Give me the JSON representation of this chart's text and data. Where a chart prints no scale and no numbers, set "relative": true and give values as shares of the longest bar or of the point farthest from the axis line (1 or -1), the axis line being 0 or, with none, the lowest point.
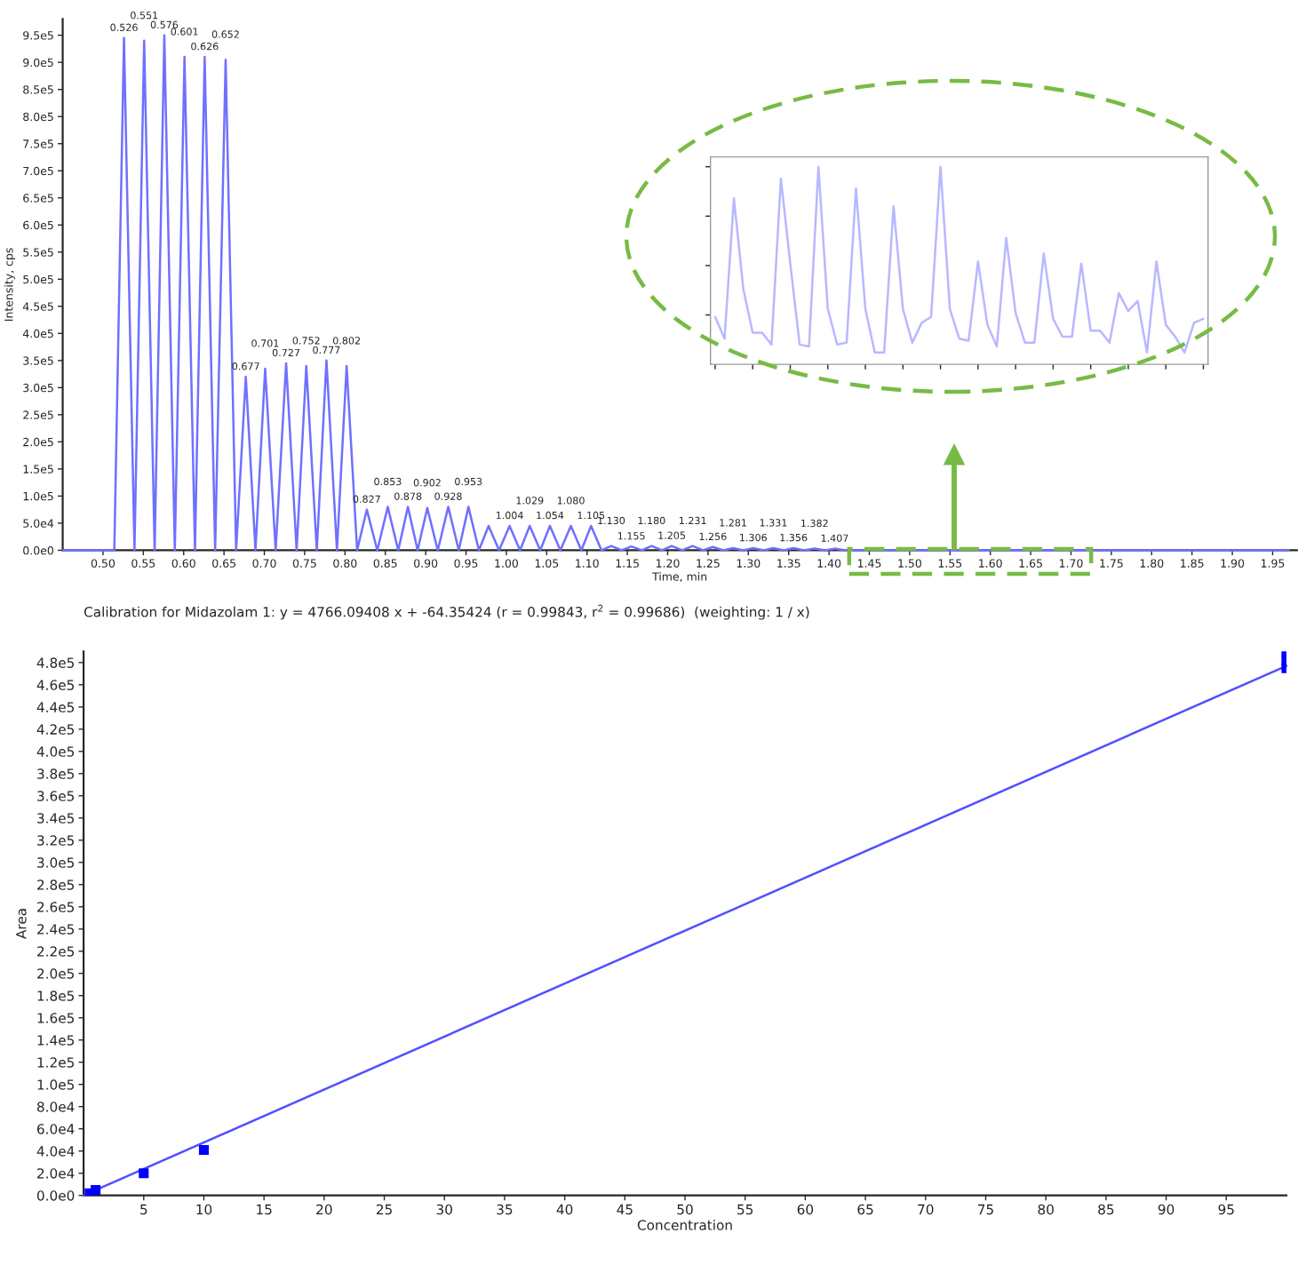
{
  "chart_data": [
    {
      "type": "line",
      "xlabel": "Time, min",
      "ylabel": "Intensity, cps",
      "color": "#7070ff",
      "x": [
        0.45,
        0.514,
        0.526,
        0.539,
        0.551,
        0.564,
        0.576,
        0.589,
        0.601,
        0.614,
        0.626,
        0.639,
        0.652,
        0.665,
        0.677,
        0.689,
        0.701,
        0.714,
        0.727,
        0.74,
        0.752,
        0.765,
        0.777,
        0.79,
        0.802,
        0.815,
        0.827,
        0.84,
        0.853,
        0.866,
        0.878,
        0.89,
        0.902,
        0.915,
        0.928,
        0.941,
        0.953,
        0.966,
        0.978,
        0.991,
        1.004,
        1.017,
        1.029,
        1.042,
        1.054,
        1.067,
        1.08,
        1.093,
        1.105,
        1.118,
        1.13,
        1.143,
        1.155,
        1.168,
        1.18,
        1.193,
        1.205,
        1.218,
        1.231,
        1.244,
        1.256,
        1.269,
        1.281,
        1.294,
        1.306,
        1.319,
        1.331,
        1.344,
        1.356,
        1.369,
        1.382,
        1.395,
        1.407,
        1.42,
        1.97
      ],
      "values": [
        0,
        0,
        945000,
        0,
        940000,
        0,
        950000,
        0,
        910000,
        0,
        910000,
        0,
        905000,
        0,
        320000,
        0,
        335000,
        0,
        345000,
        0,
        340000,
        0,
        350000,
        0,
        340000,
        0,
        75000,
        0,
        80000,
        0,
        80000,
        0,
        78000,
        0,
        80000,
        0,
        80000,
        0,
        45000,
        0,
        45000,
        0,
        45000,
        0,
        45000,
        0,
        45000,
        0,
        45000,
        0,
        8000,
        0,
        7000,
        0,
        8000,
        0,
        8000,
        0,
        8000,
        0,
        6000,
        0,
        4000,
        0,
        4000,
        0,
        4000,
        0,
        4000,
        0,
        3000,
        0,
        3000,
        0,
        0
      ],
      "xlim": [
        0.45,
        1.98
      ],
      "ylim": [
        0,
        980000
      ],
      "xticks": [
        {
          "value": 0.5,
          "label": "0.50"
        },
        {
          "value": 0.55,
          "label": "0.55"
        },
        {
          "value": 0.6,
          "label": "0.60"
        },
        {
          "value": 0.65,
          "label": "0.65"
        },
        {
          "value": 0.7,
          "label": "0.70"
        },
        {
          "value": 0.75,
          "label": "0.75"
        },
        {
          "value": 0.8,
          "label": "0.80"
        },
        {
          "value": 0.85,
          "label": "0.85"
        },
        {
          "value": 0.9,
          "label": "0.90"
        },
        {
          "value": 0.95,
          "label": "0.95"
        },
        {
          "value": 1.0,
          "label": "1.00"
        },
        {
          "value": 1.05,
          "label": "1.05"
        },
        {
          "value": 1.1,
          "label": "1.10"
        },
        {
          "value": 1.15,
          "label": "1.15"
        },
        {
          "value": 1.2,
          "label": "1.20"
        },
        {
          "value": 1.25,
          "label": "1.25"
        },
        {
          "value": 1.3,
          "label": "1.30"
        },
        {
          "value": 1.35,
          "label": "1.35"
        },
        {
          "value": 1.4,
          "label": "1.40"
        },
        {
          "value": 1.45,
          "label": "1.45"
        },
        {
          "value": 1.5,
          "label": "1.50"
        },
        {
          "value": 1.55,
          "label": "1.55"
        },
        {
          "value": 1.6,
          "label": "1.60"
        },
        {
          "value": 1.65,
          "label": "1.65"
        },
        {
          "value": 1.7,
          "label": "1.70"
        },
        {
          "value": 1.75,
          "label": "1.75"
        },
        {
          "value": 1.8,
          "label": "1.80"
        },
        {
          "value": 1.85,
          "label": "1.85"
        },
        {
          "value": 1.9,
          "label": "1.90"
        },
        {
          "value": 1.95,
          "label": "1.95"
        }
      ],
      "yticks": [
        {
          "value": 0,
          "label": "0.0e0"
        },
        {
          "value": 50000,
          "label": "5.0e4"
        },
        {
          "value": 100000,
          "label": "1.0e5"
        },
        {
          "value": 150000,
          "label": "1.5e5"
        },
        {
          "value": 200000,
          "label": "2.0e5"
        },
        {
          "value": 250000,
          "label": "2.5e5"
        },
        {
          "value": 300000,
          "label": "3.0e5"
        },
        {
          "value": 350000,
          "label": "3.5e5"
        },
        {
          "value": 400000,
          "label": "4.0e5"
        },
        {
          "value": 450000,
          "label": "4.5e5"
        },
        {
          "value": 500000,
          "label": "5.0e5"
        },
        {
          "value": 550000,
          "label": "5.5e5"
        },
        {
          "value": 600000,
          "label": "6.0e5"
        },
        {
          "value": 650000,
          "label": "6.5e5"
        },
        {
          "value": 700000,
          "label": "7.0e5"
        },
        {
          "value": 750000,
          "label": "7.5e5"
        },
        {
          "value": 800000,
          "label": "8.0e5"
        },
        {
          "value": 850000,
          "label": "8.5e5"
        },
        {
          "value": 900000,
          "label": "9.0e5"
        },
        {
          "value": 950000,
          "label": "9.5e5"
        }
      ],
      "annotations": [
        {
          "text": "0.526",
          "x": 0.526,
          "y": 945000
        },
        {
          "text": "0.551",
          "x": 0.551,
          "y": 940000
        },
        {
          "text": "0.576",
          "x": 0.576,
          "y": 950000
        },
        {
          "text": "0.601",
          "x": 0.601,
          "y": 910000
        },
        {
          "text": "0.626",
          "x": 0.626,
          "y": 910000
        },
        {
          "text": "0.652",
          "x": 0.652,
          "y": 905000
        },
        {
          "text": "0.677",
          "x": 0.677,
          "y": 320000
        },
        {
          "text": "0.701",
          "x": 0.701,
          "y": 335000
        },
        {
          "text": "0.727",
          "x": 0.727,
          "y": 345000
        },
        {
          "text": "0.752",
          "x": 0.752,
          "y": 340000
        },
        {
          "text": "0.777",
          "x": 0.777,
          "y": 350000
        },
        {
          "text": "0.802",
          "x": 0.802,
          "y": 340000
        },
        {
          "text": "0.827",
          "x": 0.827,
          "y": 75000
        },
        {
          "text": "0.853",
          "x": 0.853,
          "y": 80000
        },
        {
          "text": "0.878",
          "x": 0.878,
          "y": 80000
        },
        {
          "text": "0.902",
          "x": 0.902,
          "y": 78000
        },
        {
          "text": "0.928",
          "x": 0.928,
          "y": 80000
        },
        {
          "text": "0.953",
          "x": 0.953,
          "y": 80000
        },
        {
          "text": "1.004",
          "x": 1.004,
          "y": 45000
        },
        {
          "text": "1.029",
          "x": 1.029,
          "y": 45000
        },
        {
          "text": "1.054",
          "x": 1.054,
          "y": 45000
        },
        {
          "text": "1.080",
          "x": 1.08,
          "y": 45000
        },
        {
          "text": "1.105",
          "x": 1.105,
          "y": 45000
        },
        {
          "text": "1.130",
          "x": 1.13,
          "y": 8000
        },
        {
          "text": "1.155",
          "x": 1.155,
          "y": 7000
        },
        {
          "text": "1.180",
          "x": 1.18,
          "y": 8000
        },
        {
          "text": "1.205",
          "x": 1.205,
          "y": 8000
        },
        {
          "text": "1.231",
          "x": 1.231,
          "y": 8000
        },
        {
          "text": "1.256",
          "x": 1.256,
          "y": 6000
        },
        {
          "text": "1.281",
          "x": 1.281,
          "y": 4000
        },
        {
          "text": "1.306",
          "x": 1.306,
          "y": 4000
        },
        {
          "text": "1.331",
          "x": 1.331,
          "y": 4000
        },
        {
          "text": "1.356",
          "x": 1.356,
          "y": 4000
        },
        {
          "text": "1.382",
          "x": 1.382,
          "y": 3000
        },
        {
          "text": "1.407",
          "x": 1.407,
          "y": 3000
        }
      ]
    },
    {
      "type": "line",
      "relative": true,
      "tick_labels": false,
      "color": "#b8b8ff",
      "categories": [
        null,
        null,
        null,
        null,
        null,
        null,
        null,
        null,
        null,
        null,
        null,
        null,
        null,
        null,
        null,
        null,
        null,
        null,
        null,
        null,
        null,
        null,
        null,
        null,
        null,
        null,
        null,
        null,
        null,
        null,
        null,
        null,
        null,
        null,
        null,
        null,
        null,
        null,
        null,
        null,
        null,
        null,
        null,
        null,
        null,
        null,
        null,
        null,
        null,
        null,
        null,
        null,
        null
      ],
      "values": [
        0.24,
        0.13,
        0.84,
        0.38,
        0.16,
        0.16,
        0.1,
        0.94,
        0.51,
        0.1,
        0.09,
        1.0,
        0.28,
        0.1,
        0.11,
        0.89,
        0.28,
        0.06,
        0.06,
        0.8,
        0.28,
        0.11,
        0.21,
        0.24,
        1.0,
        0.28,
        0.13,
        0.12,
        0.52,
        0.2,
        0.09,
        0.64,
        0.26,
        0.11,
        0.11,
        0.56,
        0.23,
        0.14,
        0.14,
        0.51,
        0.17,
        0.17,
        0.11,
        0.36,
        0.27,
        0.32,
        0.06,
        0.52,
        0.2,
        0.14,
        0.06,
        0.21,
        0.23
      ]
    },
    {
      "type": "scatter",
      "title": "Calibration for Midazolam 1: y = 4766.09408 x + -64.35424 (r = 0.99843, r$^{2}$ = 0.99686)  (weighting: 1 / x)",
      "xlabel": "Concentration",
      "ylabel": "Area",
      "xlim": [
        0,
        100
      ],
      "ylim": [
        0,
        490000
      ],
      "xticks": [
        5,
        10,
        15,
        20,
        25,
        30,
        35,
        40,
        45,
        50,
        55,
        60,
        65,
        70,
        75,
        80,
        85,
        90,
        95
      ],
      "yticks": [
        {
          "value": 0,
          "label": "0.0e0"
        },
        {
          "value": 20000,
          "label": "2.0e4"
        },
        {
          "value": 40000,
          "label": "4.0e4"
        },
        {
          "value": 60000,
          "label": "6.0e4"
        },
        {
          "value": 80000,
          "label": "8.0e4"
        },
        {
          "value": 100000,
          "label": "1.0e5"
        },
        {
          "value": 120000,
          "label": "1.2e5"
        },
        {
          "value": 140000,
          "label": "1.4e5"
        },
        {
          "value": 160000,
          "label": "1.6e5"
        },
        {
          "value": 180000,
          "label": "1.8e5"
        },
        {
          "value": 200000,
          "label": "2.0e5"
        },
        {
          "value": 220000,
          "label": "2.2e5"
        },
        {
          "value": 240000,
          "label": "2.4e5"
        },
        {
          "value": 260000,
          "label": "2.6e5"
        },
        {
          "value": 280000,
          "label": "2.8e5"
        },
        {
          "value": 300000,
          "label": "3.0e5"
        },
        {
          "value": 320000,
          "label": "3.2e5"
        },
        {
          "value": 340000,
          "label": "3.4e5"
        },
        {
          "value": 360000,
          "label": "3.6e5"
        },
        {
          "value": 380000,
          "label": "3.8e5"
        },
        {
          "value": 400000,
          "label": "4.0e5"
        },
        {
          "value": 420000,
          "label": "4.2e5"
        },
        {
          "value": 440000,
          "label": "4.4e5"
        },
        {
          "value": 460000,
          "label": "4.6e5"
        },
        {
          "value": 480000,
          "label": "4.8e5"
        }
      ],
      "series": [
        {
          "type": "line",
          "color": "#5050ff",
          "x": [
            0,
            100
          ],
          "values": [
            0,
            477000
          ]
        },
        {
          "type": "scatter",
          "color": "#0000ff",
          "marker": "square",
          "x": [
            0.5,
            1,
            5,
            10,
            100,
            100,
            100
          ],
          "values": [
            2000,
            5000,
            20000,
            41000,
            475000,
            482000,
            490000
          ]
        }
      ]
    }
  ]
}
